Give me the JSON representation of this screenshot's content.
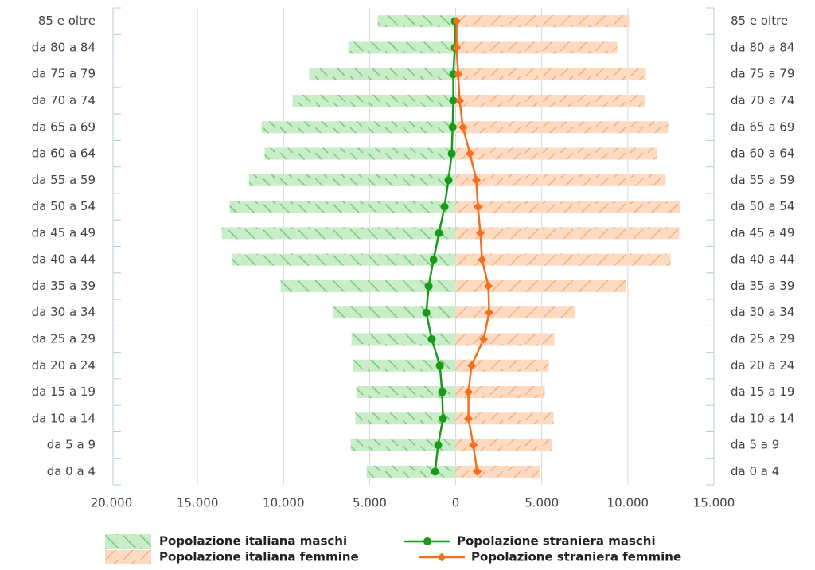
{
  "chart_data": {
    "type": "bar",
    "orientation": "horizontal",
    "categories": [
      "85 e oltre",
      "da 80 a 84",
      "da 75 a 79",
      "da 70 a 74",
      "da 65 a 69",
      "da 60 a 64",
      "da 55 a 59",
      "da 50 a 54",
      "da 45 a 49",
      "da 40 a 44",
      "da 35 a 39",
      "da 30 a 34",
      "da 25 a 29",
      "da 20 a 24",
      "da 15 a 19",
      "da 10 a 14",
      "da 5 a 9",
      "da 0 a 4"
    ],
    "series": [
      {
        "name": "Popolazione italiana maschi",
        "type": "bar",
        "color": "#8fd18f",
        "values": [
          -4530,
          -6240,
          -8510,
          -9480,
          -11280,
          -11100,
          -12020,
          -13130,
          -13590,
          -12990,
          -10170,
          -7120,
          -6060,
          -5960,
          -5780,
          -5830,
          -6100,
          -5180
        ]
      },
      {
        "name": "Popolazione italiana femmine",
        "type": "bar",
        "color": "#f9b98a",
        "values": [
          10080,
          9380,
          11050,
          11000,
          12340,
          11700,
          12200,
          13040,
          12990,
          12480,
          9890,
          6930,
          5730,
          5410,
          5180,
          5690,
          5590,
          4900
        ]
      },
      {
        "name": "Popolazione straniera maschi",
        "type": "line",
        "marker": "circle",
        "color": "#1a9a1a",
        "values": [
          -50,
          -50,
          -140,
          -140,
          -180,
          -230,
          -420,
          -650,
          -970,
          -1290,
          -1570,
          -1710,
          -1390,
          -920,
          -790,
          -740,
          -1020,
          -1200
        ]
      },
      {
        "name": "Popolazione straniera femmine",
        "type": "line",
        "marker": "diamond",
        "color": "#f07020",
        "values": [
          50,
          50,
          140,
          230,
          420,
          830,
          1200,
          1290,
          1430,
          1530,
          1900,
          1940,
          1620,
          920,
          740,
          740,
          1020,
          1250
        ]
      }
    ],
    "xlim": [
      -20000,
      15000
    ],
    "xticks": [
      {
        "value": -20000,
        "label": "20.000"
      },
      {
        "value": -15000,
        "label": "15.000"
      },
      {
        "value": -10000,
        "label": "10.000"
      },
      {
        "value": -5000,
        "label": "5.000"
      },
      0,
      {
        "value": 5000,
        "label": "5.000"
      },
      {
        "value": 10000,
        "label": "10.000"
      },
      {
        "value": 15000,
        "label": "15.000"
      }
    ],
    "grid": true
  }
}
